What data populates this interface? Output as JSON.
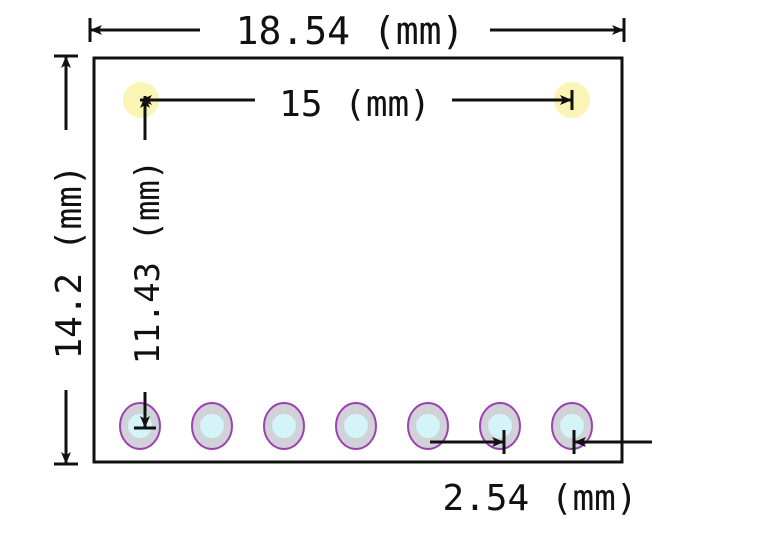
{
  "diagram": {
    "dimensions": {
      "board_width": "18.54 (mm)",
      "mount_hole_spacing": "15 (mm)",
      "board_height": "14.2 (mm)",
      "hole_to_pin_row": "11.43 (mm)",
      "pin_pitch": "2.54 (mm)"
    },
    "pin_count": 7,
    "mounting_hole_count": 2,
    "colors": {
      "outline": "#111111",
      "mounting_hole": "#fbf5b5",
      "pin_ring": "#cfd3d8",
      "pin_ring_outline": "#a040b0",
      "pin_drill": "#d4f4f8"
    }
  }
}
